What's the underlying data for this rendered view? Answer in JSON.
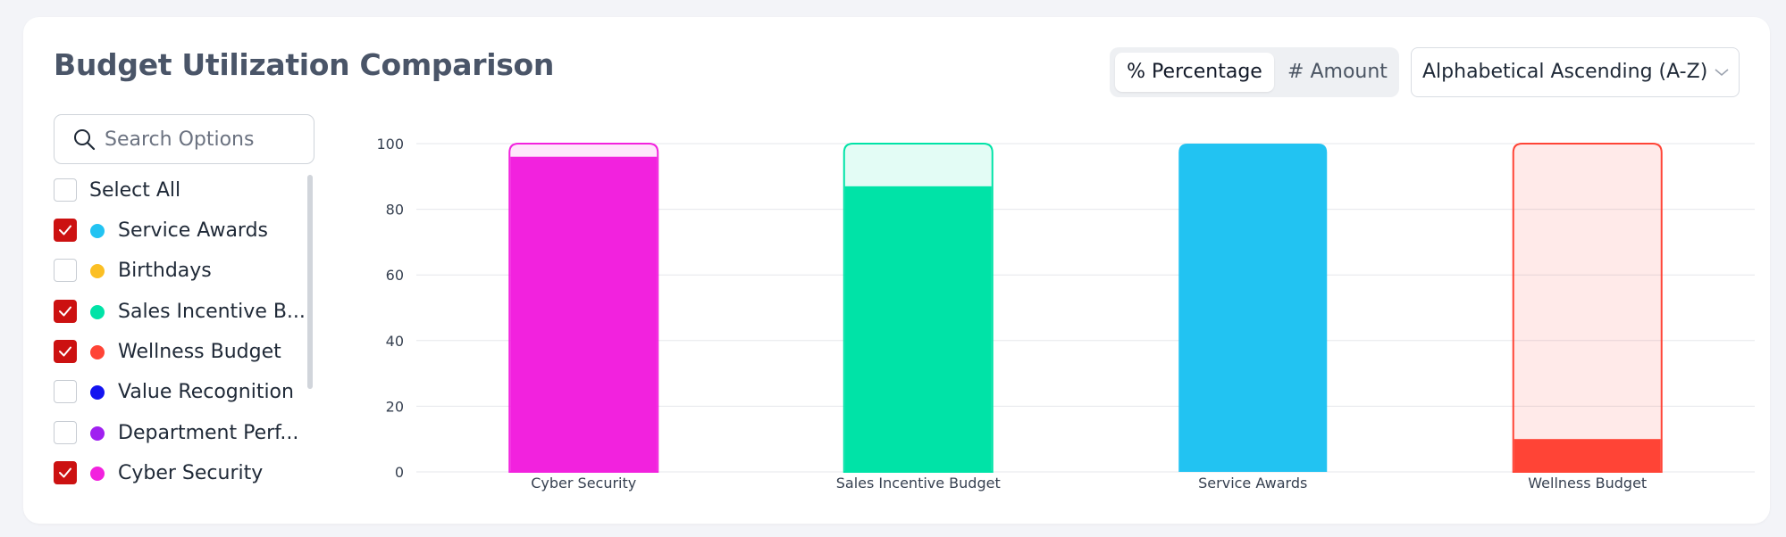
{
  "title": "Budget Utilization Comparison",
  "toggle": {
    "percentage_label": "% Percentage",
    "amount_label": "# Amount",
    "active": "percentage"
  },
  "sort": {
    "selected": "Alphabetical Ascending (A-Z)"
  },
  "search": {
    "placeholder": "Search Options"
  },
  "filters": {
    "select_all_label": "Select All",
    "items": [
      {
        "label": "Service Awards",
        "color": "#22c3f2",
        "checked": true
      },
      {
        "label": "Birthdays",
        "color": "#fbbf24",
        "checked": false
      },
      {
        "label": "Sales Incentive B...",
        "color": "#00e3a7",
        "checked": true
      },
      {
        "label": "Wellness Budget",
        "color": "#ff4436",
        "checked": true
      },
      {
        "label": "Value Recognition",
        "color": "#1414f0",
        "checked": false
      },
      {
        "label": "Department Perf...",
        "color": "#a020f0",
        "checked": false
      },
      {
        "label": "Cyber Security",
        "color": "#f222de",
        "checked": true
      }
    ]
  },
  "chart_data": {
    "type": "bar",
    "stacked": true,
    "categories": [
      "Cyber Security",
      "Sales Incentive Budget",
      "Service Awards",
      "Wellness Budget"
    ],
    "colors": [
      "#f222de",
      "#00e3a7",
      "#22c3f2",
      "#ff4436"
    ],
    "values": [
      96,
      87,
      100,
      10
    ],
    "remaining": [
      4,
      13,
      0,
      90
    ],
    "ylim": [
      0,
      100
    ],
    "yticks": [
      0,
      20,
      40,
      60,
      80,
      100
    ],
    "ytick_labels": [
      "0",
      "20",
      "40",
      "60",
      "80",
      "100"
    ],
    "xlabel": "",
    "ylabel": "",
    "grid": true
  }
}
